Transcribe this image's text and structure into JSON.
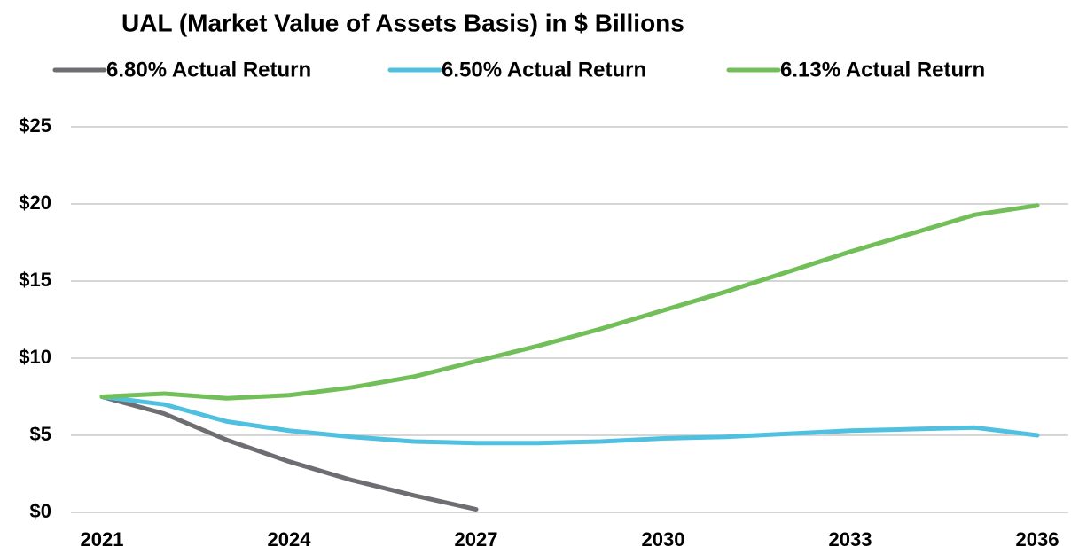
{
  "chart_data": {
    "type": "line",
    "title": "UAL (Market Value of Assets Basis) in $ Billions",
    "x": [
      2021,
      2022,
      2023,
      2024,
      2025,
      2026,
      2027,
      2028,
      2029,
      2030,
      2031,
      2032,
      2033,
      2034,
      2035,
      2036
    ],
    "series": [
      {
        "name": "6.80% Actual Return",
        "color": "#6d6e71",
        "values": [
          7.5,
          6.4,
          4.7,
          3.3,
          2.1,
          1.1,
          0.2,
          null,
          null,
          null,
          null,
          null,
          null,
          null,
          null,
          null
        ]
      },
      {
        "name": "6.50% Actual Return",
        "color": "#4fc0e0",
        "values": [
          7.5,
          7.0,
          5.9,
          5.3,
          4.9,
          4.6,
          4.5,
          4.5,
          4.6,
          4.8,
          4.9,
          5.1,
          5.3,
          5.4,
          5.5,
          5.0
        ]
      },
      {
        "name": "6.13% Actual Return",
        "color": "#72bf5a",
        "values": [
          7.5,
          7.7,
          7.4,
          7.6,
          8.1,
          8.8,
          9.8,
          10.8,
          11.9,
          13.1,
          14.3,
          15.6,
          16.9,
          18.1,
          19.3,
          19.9
        ]
      }
    ],
    "xlim": [
      2021,
      2036
    ],
    "xticks": [
      2021,
      2024,
      2027,
      2030,
      2033,
      2036
    ],
    "ylim": [
      0,
      25
    ],
    "yticks": [
      {
        "value": 0,
        "label": "$0"
      },
      {
        "value": 5,
        "label": "$5"
      },
      {
        "value": 10,
        "label": "$10"
      },
      {
        "value": 15,
        "label": "$15"
      },
      {
        "value": 20,
        "label": "$20"
      },
      {
        "value": 25,
        "label": "$25"
      }
    ],
    "grid": true
  }
}
